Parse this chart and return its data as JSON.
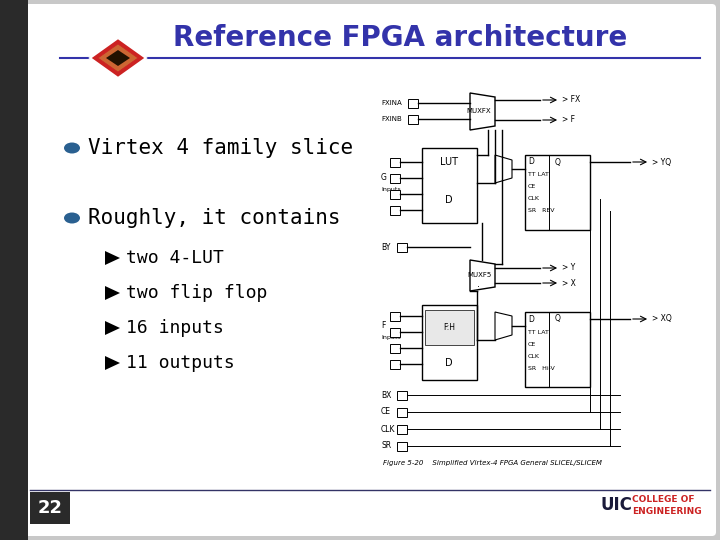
{
  "title": "Reference FPGA architecture",
  "title_color": "#3333aa",
  "title_fontsize": 20,
  "bg_color": "#c8c8c8",
  "slide_bg": "#ffffff",
  "bullet1": "Virtex 4 family slice",
  "bullet2": "Roughly, it contains",
  "subbullets": [
    "two 4-LUT",
    "two flip flop",
    "16 inputs",
    "11 outputs"
  ],
  "bullet_color": "#2a6090",
  "bullet_fontsize": 15,
  "subbullet_fontsize": 13,
  "page_number": "22",
  "footer_text_uic": "UIC",
  "footer_text_college": "COLLEGE OF\nENGINEERING",
  "footer_uic_color": "#1a1a3a",
  "footer_college_color": "#cc2222",
  "divider_color": "#3333aa",
  "logo_diamond_color": "#cc2222",
  "dark_sidebar": "#2a2a2a"
}
